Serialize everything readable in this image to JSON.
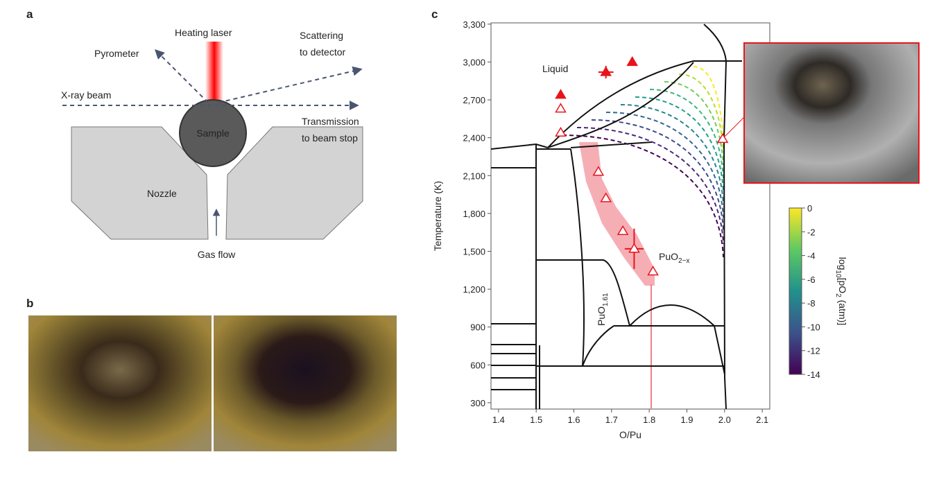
{
  "panel_a": {
    "label": "a",
    "heating_laser": "Heating laser",
    "pyrometer": "Pyrometer",
    "scattering": [
      "Scattering",
      "to detector"
    ],
    "xray": "X-ray beam",
    "transmission": [
      "Transmission",
      "to beam stop"
    ],
    "sample": "Sample",
    "nozzle": "Nozzle",
    "gas_flow": "Gas flow"
  },
  "panel_b": {
    "label": "b"
  },
  "chart_data": {
    "type": "scatter",
    "panel_label": "c",
    "xlabel": "O/Pu",
    "ylabel": "Temperature (K)",
    "xlim": [
      1.38,
      2.12
    ],
    "ylim": [
      250,
      3310
    ],
    "xticks": [
      1.4,
      1.5,
      1.6,
      1.7,
      1.8,
      1.9,
      {
        "value": 2,
        "label": "2.0"
      },
      2.1
    ],
    "yticks": [
      300,
      600,
      900,
      {
        "value": 1200,
        "label": "1,200"
      },
      {
        "value": 1500,
        "label": "1,500"
      },
      {
        "value": 1800,
        "label": "1,800"
      },
      {
        "value": 2100,
        "label": "2,100"
      },
      {
        "value": 2400,
        "label": "2,400"
      },
      {
        "value": 2700,
        "label": "2,700"
      },
      {
        "value": 3000,
        "label": "3,000"
      },
      {
        "value": 3300,
        "label": "3,300"
      }
    ],
    "series": [
      {
        "marker": "filled",
        "color": "#e8141b",
        "x": [
          1.565,
          1.685,
          1.755
        ],
        "values": [
          2740,
          2920,
          3000
        ],
        "xerr": [
          null,
          0.02,
          null
        ],
        "yerr": [
          null,
          50,
          null
        ]
      },
      {
        "marker": "open",
        "color": "#e8141b",
        "x": [
          1.565,
          1.565,
          1.665,
          1.685,
          1.73,
          1.76,
          1.81,
          1.995
        ],
        "values": [
          2630,
          2440,
          2130,
          1920,
          1660,
          1520,
          1340,
          2390
        ],
        "xerr": [
          null,
          null,
          null,
          null,
          null,
          0.025,
          null,
          null
        ],
        "yerr": [
          null,
          null,
          null,
          null,
          null,
          160,
          null,
          null
        ]
      }
    ],
    "annotations": {
      "liquid": "Liquid",
      "puo2x": {
        "text": "PuO",
        "sub": "2−x"
      },
      "puo161": {
        "text": "PuO",
        "sub": "1.61"
      }
    },
    "colorbar": {
      "label": [
        "log",
        "10",
        "[pO",
        "2",
        " (atm)]"
      ],
      "lim": [
        -14,
        0
      ],
      "ticks": [
        0,
        -2,
        -4,
        -6,
        -8,
        -10,
        -12,
        -14
      ]
    }
  }
}
